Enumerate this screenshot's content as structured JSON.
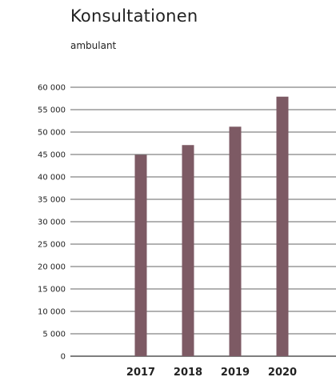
{
  "chart_data": {
    "type": "bar",
    "title": "Konsultationen",
    "subtitle": "ambulant",
    "categories": [
      "2017",
      "2018",
      "2019",
      "2020"
    ],
    "values": [
      44900,
      47100,
      51200,
      57900
    ],
    "ylim": [
      0,
      60000
    ],
    "yticks": [
      0,
      5000,
      10000,
      15000,
      20000,
      25000,
      30000,
      35000,
      40000,
      45000,
      50000,
      55000,
      60000
    ],
    "ytick_labels": [
      "0",
      "5 000",
      "10 000",
      "15 000",
      "20 000",
      "25 000",
      "30 000",
      "35 000",
      "40 000",
      "45 000",
      "50 000",
      "55 000",
      "60 000"
    ],
    "grid": true,
    "bar_color": "#7d5a64",
    "grid_color": "#333333"
  }
}
